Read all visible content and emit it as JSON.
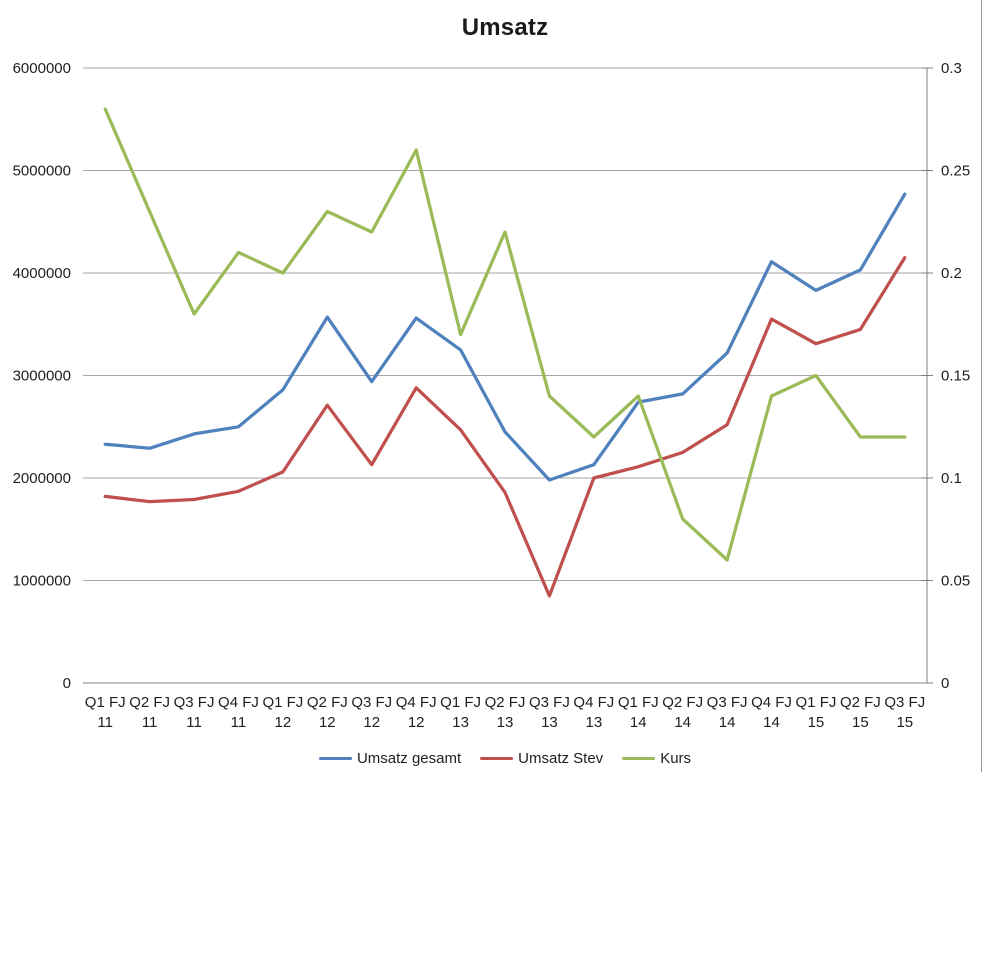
{
  "window": {
    "right_border_color": "#9a9a9a"
  },
  "chart_data": {
    "type": "line",
    "title": "Umsatz",
    "grid": true,
    "legend_position": "bottom",
    "categories": [
      [
        "Q1 FJ",
        "11"
      ],
      [
        "Q2 FJ",
        "11"
      ],
      [
        "Q3 FJ",
        "11"
      ],
      [
        "Q4 FJ",
        "11"
      ],
      [
        "Q1 FJ",
        "12"
      ],
      [
        "Q2 FJ",
        "12"
      ],
      [
        "Q3 FJ",
        "12"
      ],
      [
        "Q4 FJ",
        "12"
      ],
      [
        "Q1 FJ",
        "13"
      ],
      [
        "Q2 FJ",
        "13"
      ],
      [
        "Q3 FJ",
        "13"
      ],
      [
        "Q4 FJ",
        "13"
      ],
      [
        "Q1 FJ",
        "14"
      ],
      [
        "Q2 FJ",
        "14"
      ],
      [
        "Q3 FJ",
        "14"
      ],
      [
        "Q4 FJ",
        "14"
      ],
      [
        "Q1 FJ",
        "15"
      ],
      [
        "Q2 FJ",
        "15"
      ],
      [
        "Q3 FJ",
        "15"
      ]
    ],
    "left_axis": {
      "min": 0,
      "max": 6000000,
      "step": 1000000,
      "tick_labels": [
        "0",
        "1000000",
        "2000000",
        "3000000",
        "4000000",
        "5000000",
        "6000000"
      ]
    },
    "right_axis": {
      "min": 0,
      "max": 0.3,
      "step": 0.05,
      "tick_labels": [
        "0",
        "0.05",
        "0.1",
        "0.15",
        "0.2",
        "0.25",
        "0.3"
      ]
    },
    "series": [
      {
        "name": "Umsatz gesamt",
        "color": "#4F81BD",
        "axis": "left",
        "values": [
          2330000,
          2290000,
          2430000,
          2500000,
          2860000,
          3570000,
          2940000,
          3560000,
          3250000,
          2450000,
          1980000,
          2130000,
          2740000,
          2820000,
          3220000,
          4110000,
          3830000,
          4030000,
          4770000
        ]
      },
      {
        "name": "Umsatz Stev",
        "color": "#C0504D",
        "axis": "left",
        "values": [
          1820000,
          1770000,
          1790000,
          1870000,
          2060000,
          2710000,
          2130000,
          2880000,
          2470000,
          1860000,
          850000,
          2000000,
          2110000,
          2250000,
          2520000,
          3550000,
          3310000,
          3450000,
          4150000
        ]
      },
      {
        "name": "Kurs",
        "color": "#9BBB59",
        "axis": "right",
        "values": [
          0.28,
          0.23,
          0.18,
          0.21,
          0.2,
          0.23,
          0.22,
          0.26,
          0.17,
          0.22,
          0.14,
          0.12,
          0.14,
          0.08,
          0.06,
          0.14,
          0.15,
          0.12,
          0.12
        ]
      }
    ],
    "colors": {
      "gridline": "#A6A6A6",
      "axis_line": "#808080",
      "text": "#1f1f1f"
    }
  }
}
